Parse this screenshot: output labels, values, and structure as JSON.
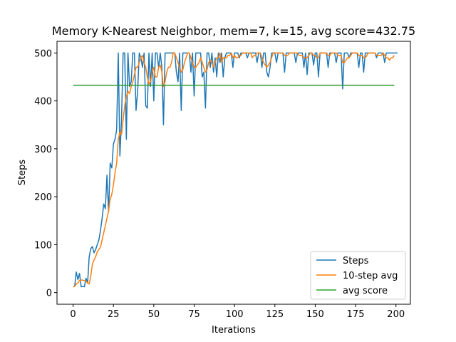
{
  "chart_data": {
    "type": "line",
    "title": "Memory K-Nearest Neighbor, mem=7, k=15, avg score=432.75",
    "xlabel": "Iterations",
    "ylabel": "Steps",
    "xlim": [
      -9.95,
      208.95
    ],
    "ylim": [
      -24.3,
      524.3
    ],
    "xticks": [
      0,
      25,
      50,
      75,
      100,
      125,
      150,
      175,
      200
    ],
    "yticks": [
      0,
      100,
      200,
      300,
      400,
      500
    ],
    "grid": false,
    "legend_position": "lower-right",
    "colors": {
      "steps": "#1f77b4",
      "avg10": "#ff7f0e",
      "avg_score": "#2ca02c"
    },
    "series": [
      {
        "name": "Steps",
        "key": "steps",
        "values": [
          12,
          13,
          43,
          27,
          40,
          12,
          13,
          12,
          30,
          20,
          75,
          92,
          96,
          83,
          90,
          100,
          110,
          130,
          155,
          185,
          175,
          245,
          170,
          270,
          260,
          310,
          320,
          340,
          500,
          285,
          360,
          500,
          500,
          320,
          500,
          430,
          440,
          500,
          500,
          380,
          420,
          500,
          490,
          470,
          500,
          390,
          385,
          500,
          430,
          500,
          400,
          500,
          500,
          470,
          500,
          470,
          350,
          500,
          500,
          500,
          500,
          500,
          500,
          500,
          460,
          440,
          500,
          380,
          500,
          500,
          500,
          500,
          500,
          460,
          500,
          410,
          500,
          500,
          500,
          500,
          450,
          460,
          385,
          500,
          500,
          470,
          500,
          460,
          490,
          450,
          500,
          480,
          500,
          450,
          490,
          500,
          500,
          500,
          500,
          470,
          500,
          500,
          500,
          490,
          500,
          500,
          500,
          500,
          490,
          500,
          500,
          500,
          500,
          500,
          480,
          500,
          500,
          470,
          500,
          500,
          460,
          450,
          470,
          500,
          500,
          500,
          480,
          500,
          500,
          500,
          500,
          460,
          500,
          500,
          500,
          500,
          500,
          500,
          480,
          500,
          500,
          500,
          500,
          470,
          500,
          455,
          500,
          500,
          500,
          475,
          500,
          500,
          450,
          500,
          500,
          500,
          500,
          500,
          470,
          500,
          500,
          500,
          500,
          480,
          500,
          500,
          500,
          425,
          500,
          500,
          500,
          490,
          500,
          500,
          500,
          500,
          500,
          470,
          500,
          500,
          460,
          500,
          500,
          500,
          500,
          500,
          500,
          500,
          490,
          500,
          500,
          500,
          500,
          480,
          500,
          500,
          500,
          500,
          500,
          500,
          500,
          500
        ]
      },
      {
        "name": "10-step avg",
        "key": "avg10",
        "values": [
          12,
          13,
          18,
          20,
          25,
          26,
          26,
          25,
          24,
          20,
          18,
          35,
          60,
          68,
          75,
          85,
          90,
          95,
          110,
          125,
          140,
          155,
          170,
          195,
          205,
          225,
          250,
          270,
          320,
          335,
          330,
          360,
          390,
          410,
          420,
          415,
          430,
          440,
          455,
          470,
          470,
          480,
          490,
          495,
          480,
          470,
          450,
          435,
          440,
          460,
          470,
          450,
          450,
          470,
          475,
          460,
          430,
          440,
          460,
          470,
          470,
          480,
          500,
          500,
          490,
          480,
          470,
          460,
          465,
          480,
          490,
          500,
          500,
          490,
          480,
          470,
          470,
          475,
          480,
          490,
          480,
          470,
          460,
          465,
          480,
          485,
          480,
          470,
          480,
          490,
          490,
          500,
          480,
          490,
          490,
          490,
          495,
          495,
          500,
          490,
          495,
          490,
          490,
          495,
          495,
          500,
          500,
          500,
          500,
          500,
          500,
          490,
          495,
          495,
          500,
          500,
          500,
          490,
          480,
          475,
          470,
          475,
          480,
          490,
          500,
          500,
          500,
          500,
          500,
          500,
          500,
          495,
          495,
          495,
          500,
          500,
          500,
          500,
          500,
          500,
          495,
          495,
          495,
          490,
          490,
          490,
          495,
          500,
          500,
          495,
          495,
          490,
          490,
          500,
          500,
          500,
          500,
          500,
          495,
          495,
          500,
          500,
          500,
          500,
          495,
          495,
          495,
          480,
          480,
          485,
          490,
          490,
          495,
          500,
          500,
          500,
          500,
          495,
          495,
          495,
          490,
          490,
          495,
          500,
          500,
          500,
          500,
          500,
          495,
          495,
          495,
          495,
          500,
          495,
          490,
          490,
          485,
          490,
          490,
          495
        ]
      },
      {
        "name": "avg score",
        "key": "avg_score",
        "values": [
          432.75,
          432.75
        ]
      }
    ]
  }
}
